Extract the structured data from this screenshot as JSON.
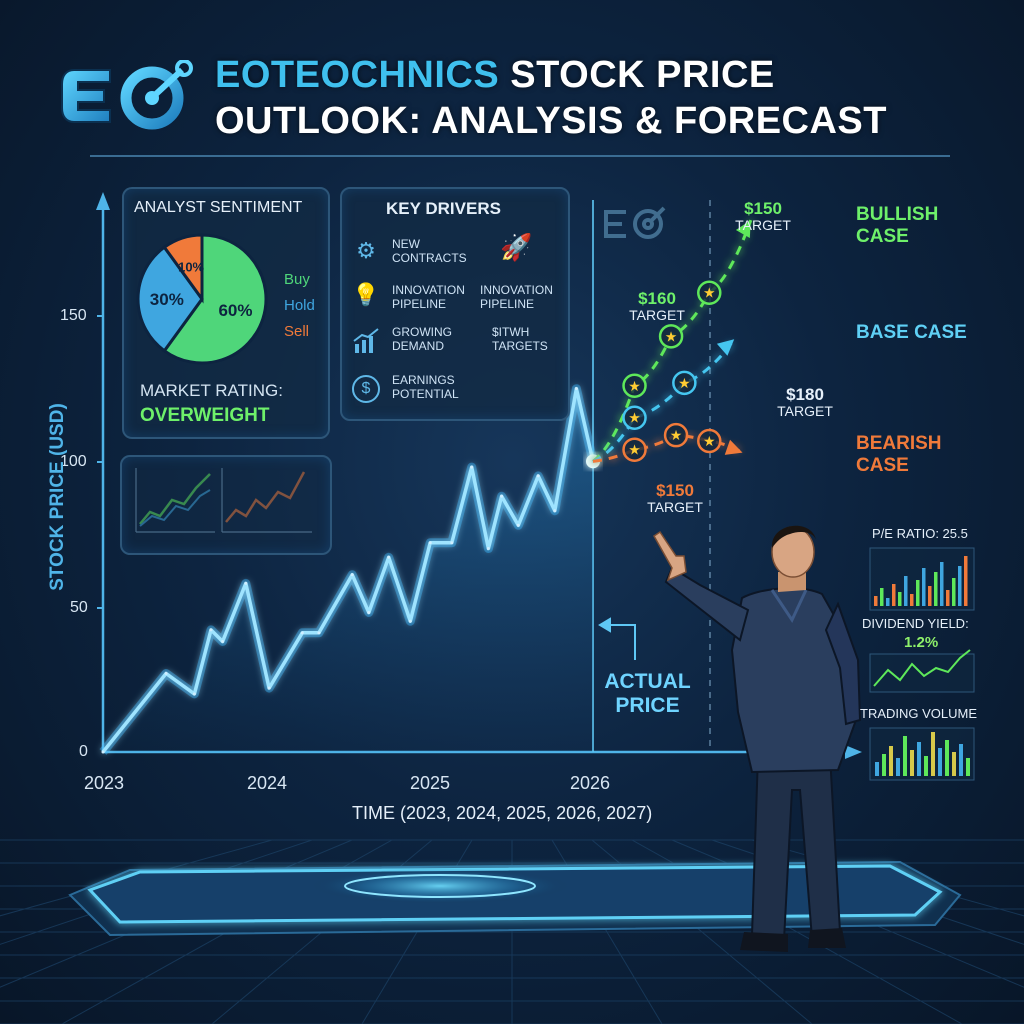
{
  "header": {
    "logo_text": "EO",
    "title_accent": "EOTEOCHNICS",
    "title_rest": " STOCK PRICE",
    "title_line2": "OUTLOOK: ANALYSIS & FORECAST"
  },
  "colors": {
    "accent_blue": "#3fc0ee",
    "bullish": "#5ee85a",
    "base": "#45c6f0",
    "bearish": "#f07a3a",
    "actual_line": "#6fd4ff"
  },
  "sentiment": {
    "title": "ANALYST SENTIMENT",
    "slices": [
      {
        "label": "Buy",
        "value": 60,
        "text": "60%",
        "color": "#4fd67a"
      },
      {
        "label": "Hold",
        "value": 30,
        "text": "30%",
        "color": "#3fa6e0"
      },
      {
        "label": "Sell",
        "value": 10,
        "text": "10%",
        "color": "#f07a3a"
      }
    ],
    "rating_label": "MARKET RATING:",
    "rating_value": "OVERWEIGHT"
  },
  "drivers": {
    "title": "KEY DRIVERS",
    "items": [
      {
        "label": "NEW\nCONTRACTS",
        "icon": "gear-icon"
      },
      {
        "label": "",
        "icon": "rocket-icon"
      },
      {
        "label": "INNOVATION\nPIPELINE",
        "icon": "lightbulb-icon"
      },
      {
        "label": "INNOVATION\nPIPELINE",
        "icon": "none"
      },
      {
        "label": "GROWING\nDEMAND",
        "icon": "bar-growth-icon"
      },
      {
        "label": "$ITWH\nTARGETS",
        "icon": "none"
      },
      {
        "label": "EARNINGS\nPOTENTIAL",
        "icon": "dollar-coin-icon"
      }
    ]
  },
  "chart_data": {
    "type": "line",
    "ylabel": "STOCK PRICE (USD)",
    "xlabel": "TIME (2023, 2024, 2025, 2026, 2027)",
    "x_ticks": [
      "2023",
      "2024",
      "2025",
      "2026"
    ],
    "y_ticks": [
      "0",
      "50",
      "100",
      "150"
    ],
    "ylim": [
      0,
      175
    ],
    "xlim": [
      2023,
      2027.1
    ],
    "actual_price": {
      "name": "ACTUAL PRICE",
      "x": [
        2023.0,
        2023.38,
        2023.55,
        2023.65,
        2023.72,
        2023.86,
        2024.0,
        2024.2,
        2024.3,
        2024.5,
        2024.6,
        2024.72,
        2024.85,
        2024.97,
        2025.1,
        2025.22,
        2025.32,
        2025.4,
        2025.5,
        2025.62,
        2025.72,
        2025.85,
        2025.95
      ],
      "y": [
        0,
        27,
        20,
        42,
        38,
        58,
        22,
        41,
        41,
        61,
        48,
        67,
        45,
        72,
        72,
        98,
        70,
        88,
        78,
        95,
        83,
        125,
        100
      ]
    },
    "scenarios": [
      {
        "name": "BULLISH CASE",
        "x": [
          2025.95,
          2026.2,
          2026.42,
          2026.65,
          2026.9
        ],
        "y": [
          100,
          126,
          143,
          158,
          183
        ],
        "targets": [
          {
            "price": "$160",
            "label": "TARGET"
          },
          {
            "price": "$150",
            "label": "TARGET"
          }
        ]
      },
      {
        "name": "BASE CASE",
        "x": [
          2025.95,
          2026.2,
          2026.5,
          2026.8
        ],
        "y": [
          100,
          115,
          127,
          142
        ],
        "targets": [
          {
            "price": "$180",
            "label": "TARGET"
          }
        ]
      },
      {
        "name": "BEARISH CASE",
        "x": [
          2025.95,
          2026.2,
          2026.45,
          2026.65,
          2026.85
        ],
        "y": [
          100,
          104,
          109,
          107,
          103
        ],
        "targets": [
          {
            "price": "$150",
            "label": "TARGET"
          }
        ]
      }
    ]
  },
  "metrics": {
    "pe_label": "P/E RATIO: 25.5",
    "dividend_label": "DIVIDEND YIELD:",
    "dividend_value": "1.2%",
    "volume_label": "TRADING VOLUME"
  }
}
